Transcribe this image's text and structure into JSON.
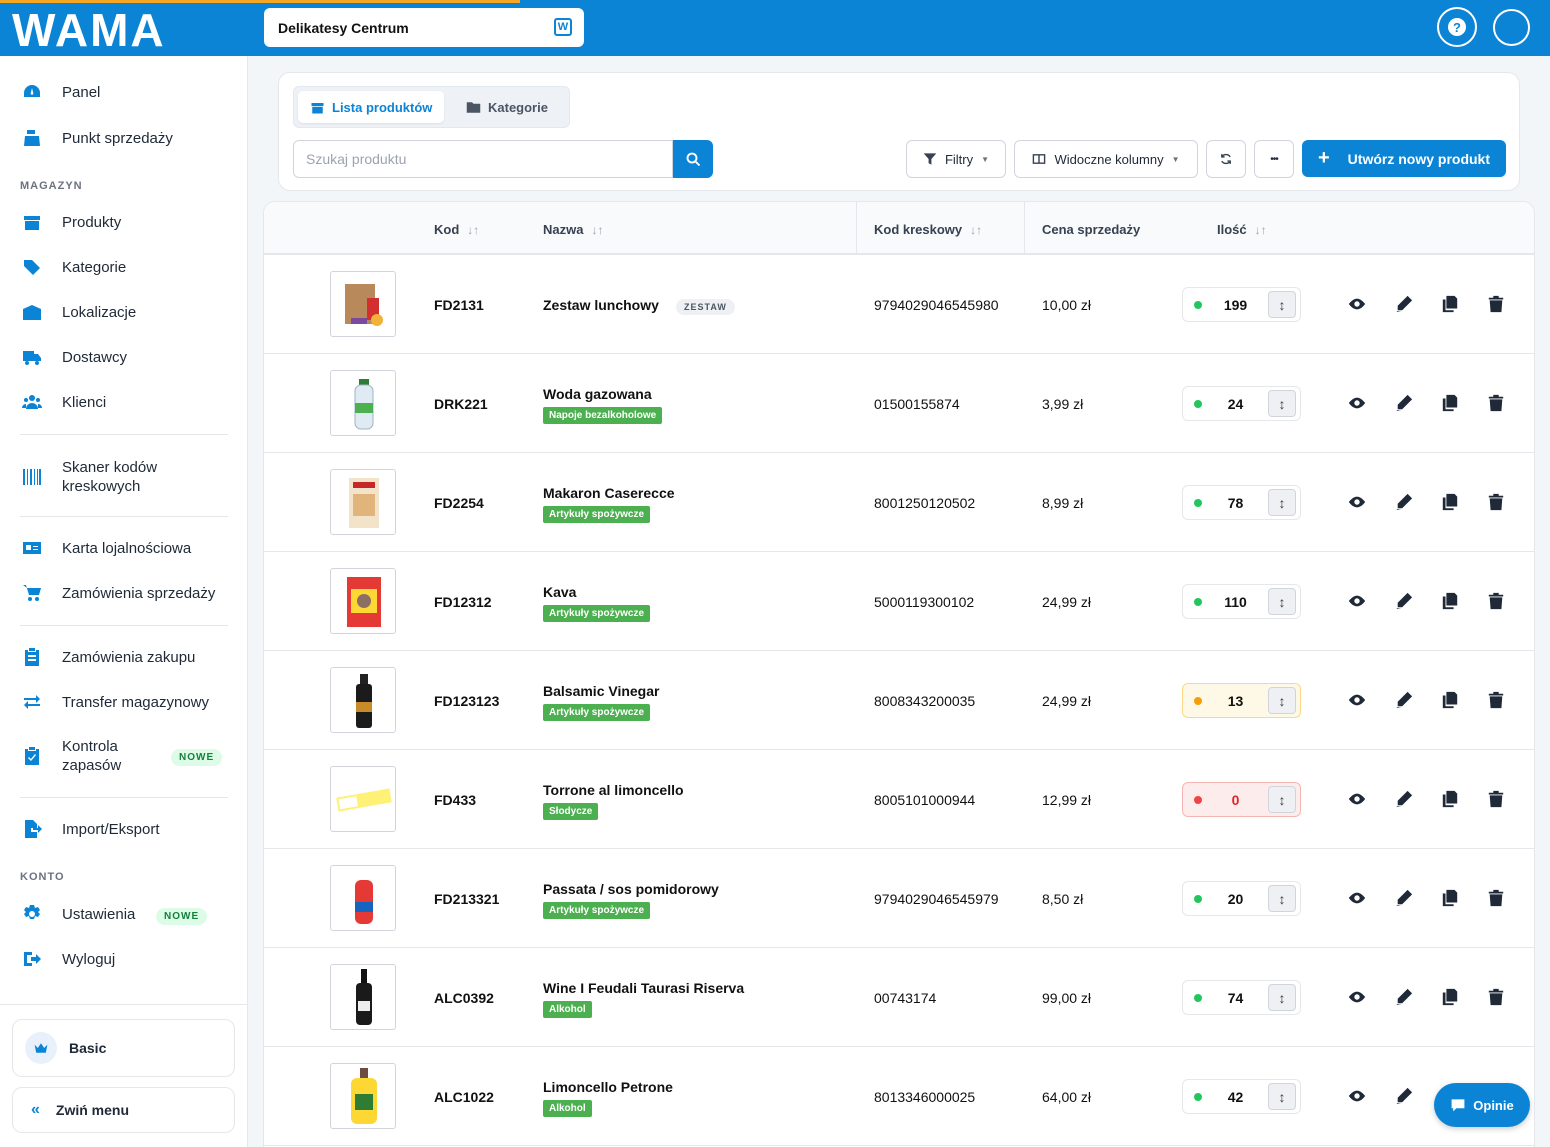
{
  "header": {
    "store_name": "Delikatesy Centrum",
    "help_label": "?",
    "logo_text": "WAMA"
  },
  "sidebar": {
    "items_top": [
      {
        "label": "Panel",
        "icon": "dashboard-icon"
      },
      {
        "label": "Punkt sprzedaży",
        "icon": "cash-register-icon"
      }
    ],
    "section_magazyn": "MAGAZYN",
    "items_magazyn": [
      {
        "label": "Produkty",
        "icon": "box-icon"
      },
      {
        "label": "Kategorie",
        "icon": "tags-icon"
      },
      {
        "label": "Lokalizacje",
        "icon": "warehouse-icon"
      },
      {
        "label": "Dostawcy",
        "icon": "truck-icon"
      },
      {
        "label": "Klienci",
        "icon": "users-icon"
      }
    ],
    "scanner_label": "Skaner kodów kreskowych",
    "loyalty_label": "Karta lojalnościowa",
    "sales_orders_label": "Zamówienia sprzedaży",
    "purchase_orders_label": "Zamówienia zakupu",
    "transfer_label": "Transfer magazynowy",
    "stock_control_label": "Kontrola zapasów",
    "new_badge": "NOWE",
    "import_export_label": "Import/Eksport",
    "section_konto": "KONTO",
    "settings_label": "Ustawienia",
    "logout_label": "Wyloguj",
    "plan_label": "Basic",
    "collapse_label": "Zwiń menu",
    "collapse_chevron": "«"
  },
  "toolbar": {
    "tab_products": "Lista produktów",
    "tab_categories": "Kategorie",
    "search_placeholder": "Szukaj produktu",
    "filters_label": "Filtry",
    "columns_label": "Widoczne kolumny",
    "more_label": "•••",
    "create_label": "Utwórz nowy produkt",
    "create_plus": "+"
  },
  "table": {
    "columns": {
      "code": "Kod",
      "name": "Nazwa",
      "barcode": "Kod kreskowy",
      "price": "Cena sprzedaży",
      "qty": "Ilość"
    },
    "sort_glyph": "↓↑",
    "adjust_glyph": "↕",
    "rows": [
      {
        "code": "FD2131",
        "name": "Zestaw lunchowy",
        "tag": "ZESTAW",
        "category": "",
        "barcode": "9794029046545980",
        "price": "10,00 zł",
        "qty": "199",
        "status": "ok",
        "image": "lunch-bag"
      },
      {
        "code": "DRK221",
        "name": "Woda gazowana",
        "tag": "",
        "category": "Napoje bezalkoholowe",
        "barcode": "01500155874",
        "price": "3,99 zł",
        "qty": "24",
        "status": "ok",
        "image": "water-bottle"
      },
      {
        "code": "FD2254",
        "name": "Makaron Caserecce",
        "tag": "",
        "category": "Artykuły spożywcze",
        "barcode": "8001250120502",
        "price": "8,99 zł",
        "qty": "78",
        "status": "ok",
        "image": "pasta-bag"
      },
      {
        "code": "FD12312",
        "name": "Kava",
        "tag": "",
        "category": "Artykuły spożywcze",
        "barcode": "5000119300102",
        "price": "24,99 zł",
        "qty": "110",
        "status": "ok",
        "image": "coffee-box"
      },
      {
        "code": "FD123123",
        "name": "Balsamic Vinegar",
        "tag": "",
        "category": "Artykuły spożywcze",
        "barcode": "8008343200035",
        "price": "24,99 zł",
        "qty": "13",
        "status": "low",
        "image": "vinegar-bottle"
      },
      {
        "code": "FD433",
        "name": "Torrone al limoncello",
        "tag": "",
        "category": "Słodycze",
        "barcode": "8005101000944",
        "price": "12,99 zł",
        "qty": "0",
        "status": "out",
        "image": "torrone-bar"
      },
      {
        "code": "FD213321",
        "name": "Passata / sos pomidorowy",
        "tag": "",
        "category": "Artykuły spożywcze",
        "barcode": "9794029046545979",
        "price": "8,50 zł",
        "qty": "20",
        "status": "ok",
        "image": "passata-bottle"
      },
      {
        "code": "ALC0392",
        "name": "Wine I Feudali Taurasi Riserva",
        "tag": "",
        "category": "Alkohol",
        "barcode": "00743174",
        "price": "99,00 zł",
        "qty": "74",
        "status": "ok",
        "image": "wine-bottle"
      },
      {
        "code": "ALC1022",
        "name": "Limoncello Petrone",
        "tag": "",
        "category": "Alkohol",
        "barcode": "8013346000025",
        "price": "64,00 zł",
        "qty": "42",
        "status": "ok",
        "image": "limoncello-bottle"
      }
    ]
  },
  "status_colors": {
    "ok": "#22c55e",
    "low": "#f59e0b",
    "out": "#ef4444"
  },
  "accent_color": "#0b84d6",
  "feedback_label": "Opinie"
}
